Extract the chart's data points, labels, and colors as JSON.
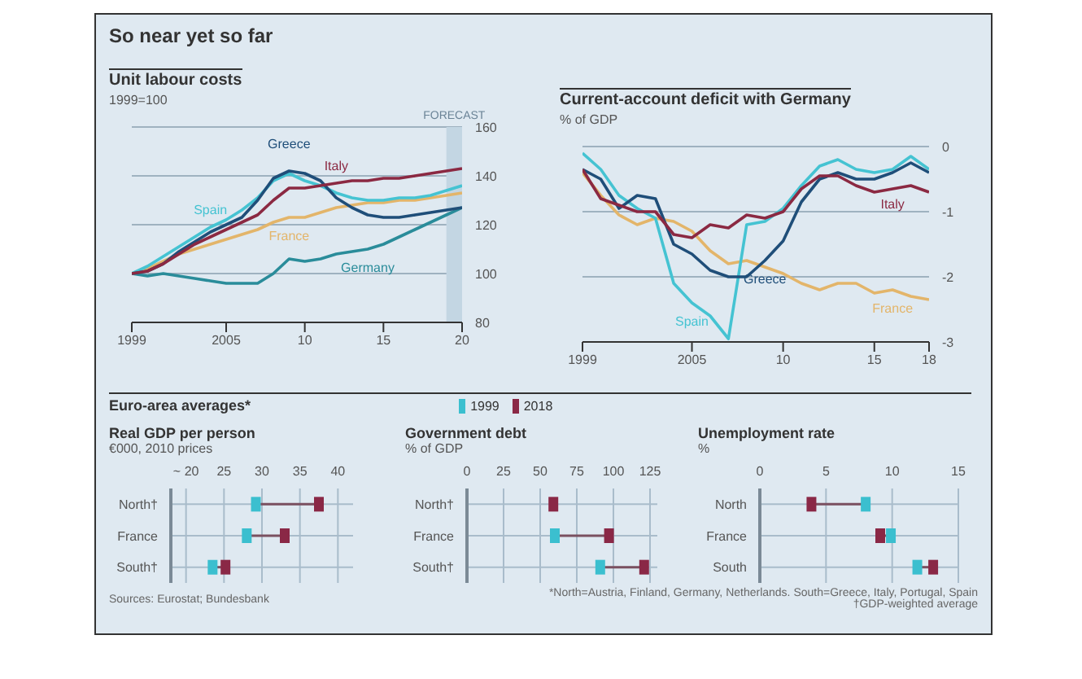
{
  "chart_data": [
    {
      "type": "line",
      "title": "So near yet so far",
      "subtitle": "Unit labour costs",
      "ylabel": "1999=100",
      "x": [
        1999,
        2000,
        2001,
        2002,
        2003,
        2004,
        2005,
        2006,
        2007,
        2008,
        2009,
        2010,
        2011,
        2012,
        2013,
        2014,
        2015,
        2016,
        2017,
        2018,
        2019,
        2020
      ],
      "series": [
        {
          "name": "Germany",
          "color": "#2a8c9a",
          "values": [
            100,
            99,
            100,
            99,
            98,
            97,
            96,
            96,
            96,
            100,
            106,
            105,
            106,
            108,
            109,
            110,
            112,
            115,
            118,
            121,
            124,
            127
          ]
        },
        {
          "name": "France",
          "color": "#e3b56a",
          "values": [
            100,
            102,
            105,
            108,
            110,
            112,
            114,
            116,
            118,
            121,
            123,
            123,
            125,
            127,
            128,
            129,
            129,
            130,
            130,
            131,
            132,
            133
          ]
        },
        {
          "name": "Spain",
          "color": "#45c3d2",
          "values": [
            100,
            103,
            107,
            111,
            115,
            119,
            122,
            126,
            131,
            138,
            141,
            138,
            136,
            133,
            131,
            130,
            130,
            131,
            131,
            132,
            134,
            136
          ]
        },
        {
          "name": "Greece",
          "color": "#1f4e79",
          "values": [
            100,
            101,
            104,
            109,
            113,
            117,
            120,
            123,
            130,
            139,
            142,
            141,
            138,
            131,
            127,
            124,
            123,
            123,
            124,
            125,
            126,
            127
          ]
        },
        {
          "name": "Italy",
          "color": "#8b2942",
          "values": [
            100,
            101,
            104,
            108,
            112,
            115,
            118,
            121,
            124,
            130,
            135,
            135,
            136,
            137,
            138,
            138,
            139,
            139,
            140,
            141,
            142,
            143
          ]
        }
      ],
      "xlim": [
        1999,
        2020
      ],
      "xticks": [
        1999,
        2005,
        {
          "value": 2010,
          "label": "10"
        },
        {
          "value": 2015,
          "label": "15"
        },
        {
          "value": 2020,
          "label": "20"
        }
      ],
      "ylim": [
        80,
        160
      ],
      "yticks": [
        80,
        100,
        120,
        140,
        160
      ],
      "grid": "y",
      "legend": false,
      "bands": [
        {
          "axis": "x",
          "from": 2019,
          "to": 2020,
          "label": "FORECAST",
          "color": "#c3d6e3"
        }
      ]
    },
    {
      "type": "line",
      "title": "Current-account deficit with Germany",
      "ylabel": "% of GDP",
      "x": [
        1999,
        2000,
        2001,
        2002,
        2003,
        2004,
        2005,
        2006,
        2007,
        2008,
        2009,
        2010,
        2011,
        2012,
        2013,
        2014,
        2015,
        2016,
        2017,
        2018
      ],
      "series": [
        {
          "name": "France",
          "color": "#e3b56a",
          "values": [
            -0.4,
            -0.75,
            -1.05,
            -1.2,
            -1.1,
            -1.15,
            -1.3,
            -1.6,
            -1.8,
            -1.75,
            -1.85,
            -1.95,
            -2.1,
            -2.2,
            -2.1,
            -2.1,
            -2.25,
            -2.2,
            -2.3,
            -2.35
          ]
        },
        {
          "name": "Spain",
          "color": "#45c3d2",
          "values": [
            -0.1,
            -0.35,
            -0.75,
            -0.95,
            -1.1,
            -2.1,
            -2.4,
            -2.6,
            -2.95,
            -1.2,
            -1.15,
            -0.95,
            -0.6,
            -0.3,
            -0.2,
            -0.35,
            -0.4,
            -0.35,
            -0.15,
            -0.35
          ]
        },
        {
          "name": "Greece",
          "color": "#1f4e79",
          "values": [
            -0.35,
            -0.5,
            -0.95,
            -0.75,
            -0.8,
            -1.5,
            -1.65,
            -1.9,
            -2.0,
            -2.0,
            -1.75,
            -1.45,
            -0.85,
            -0.5,
            -0.4,
            -0.5,
            -0.5,
            -0.4,
            -0.25,
            -0.4
          ]
        },
        {
          "name": "Italy",
          "color": "#8b2942",
          "values": [
            -0.35,
            -0.8,
            -0.9,
            -1.0,
            -1.0,
            -1.35,
            -1.4,
            -1.2,
            -1.25,
            -1.05,
            -1.1,
            -1.0,
            -0.65,
            -0.45,
            -0.45,
            -0.6,
            -0.7,
            -0.65,
            -0.6,
            -0.7
          ]
        }
      ],
      "xlim": [
        1999,
        2018
      ],
      "xticks": [
        1999,
        2005,
        {
          "value": 2010,
          "label": "10"
        },
        {
          "value": 2015,
          "label": "15"
        },
        {
          "value": 2018,
          "label": "18"
        }
      ],
      "ylim": [
        -3,
        0
      ],
      "yticks": [
        -3,
        -2,
        -1,
        0
      ],
      "grid": "y",
      "legend": false
    },
    {
      "type": "scatter",
      "orientation": "horizontal",
      "legend_title": "Euro-area averages*",
      "legend": "top",
      "title": "Real GDP per person",
      "xlabel": "€000, 2010 prices",
      "categories": [
        "North†",
        "France",
        "South†"
      ],
      "series": [
        {
          "name": "1999",
          "color": "#3bbfcf",
          "values": [
            29.2,
            28,
            23.5
          ]
        },
        {
          "name": "2018",
          "color": "#8a2846",
          "values": [
            37.5,
            33,
            25.2
          ]
        }
      ],
      "marker": "square",
      "xlim": [
        18,
        42
      ],
      "xticks": [
        {
          "value": 20,
          "label": "~ 20"
        },
        25,
        30,
        35,
        40
      ],
      "grid": true,
      "annotations": [
        "Sources: Eurostat; Bundesbank"
      ]
    },
    {
      "type": "scatter",
      "orientation": "horizontal",
      "title": "Government debt",
      "xlabel": "% of GDP",
      "categories": [
        "North†",
        "France",
        "South†"
      ],
      "series": [
        {
          "color": "#3bbfcf",
          "values": [
            null,
            60,
            91
          ]
        },
        {
          "color": "#8a2846",
          "values": [
            59,
            97,
            121
          ]
        }
      ],
      "marker": "square",
      "xlim": [
        0,
        130
      ],
      "xticks": [
        0,
        25,
        50,
        75,
        100,
        125
      ],
      "grid": true
    },
    {
      "type": "scatter",
      "orientation": "horizontal",
      "title": "Unemployment rate",
      "xlabel": "%",
      "categories": [
        "North",
        "France",
        "South"
      ],
      "series": [
        {
          "color": "#3bbfcf",
          "values": [
            8,
            9.9,
            11.9
          ]
        },
        {
          "color": "#8a2846",
          "values": [
            3.9,
            9.1,
            13.1
          ]
        }
      ],
      "marker": "square",
      "xlim": [
        0,
        15
      ],
      "xticks": [
        0,
        5,
        10,
        15
      ],
      "grid": true,
      "annotations": [
        "*North=Austria, Finland, Germany, Netherlands. South=Greece, Italy, Portugal, Spain",
        "†GDP-weighted average"
      ]
    }
  ]
}
